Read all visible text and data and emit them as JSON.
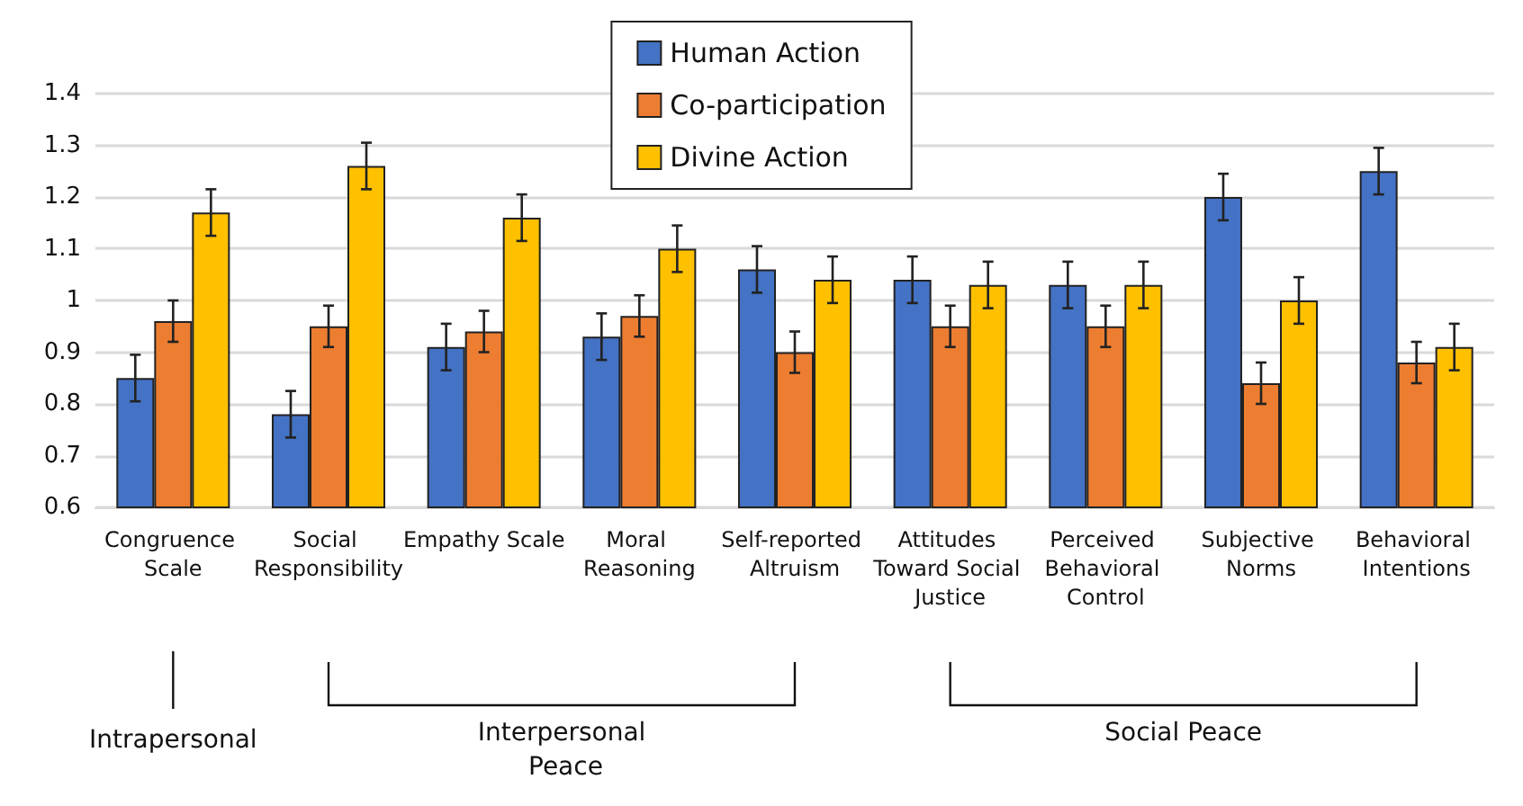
{
  "chart_data": {
    "type": "bar",
    "categories": [
      "Congruence Scale",
      "Social Responsibility",
      "Empathy Scale",
      "Moral Reasoning",
      "Self-reported Altruism",
      "Attitudes Toward Social Justice",
      "Perceived Behavioral Control",
      "Subjective Norms",
      "Behavioral Intentions"
    ],
    "series": [
      {
        "name": "Human Action",
        "color": "#4472c4",
        "values": [
          0.85,
          0.78,
          0.91,
          0.93,
          1.06,
          1.04,
          1.03,
          1.2,
          1.25
        ],
        "errors": [
          0.045,
          0.045,
          0.045,
          0.045,
          0.045,
          0.045,
          0.045,
          0.045,
          0.045
        ]
      },
      {
        "name": "Co-participation",
        "color": "#ed7d31",
        "values": [
          0.96,
          0.95,
          0.94,
          0.97,
          0.9,
          0.95,
          0.95,
          0.84,
          0.88
        ],
        "errors": [
          0.04,
          0.04,
          0.04,
          0.04,
          0.04,
          0.04,
          0.04,
          0.04,
          0.04
        ]
      },
      {
        "name": "Divine Action",
        "color": "#ffc000",
        "values": [
          1.17,
          1.26,
          1.16,
          1.1,
          1.04,
          1.03,
          1.03,
          1.0,
          0.91
        ],
        "errors": [
          0.045,
          0.045,
          0.045,
          0.045,
          0.045,
          0.045,
          0.045,
          0.045,
          0.045
        ]
      }
    ],
    "ylim": [
      0.6,
      1.4
    ],
    "yticks": [
      0.6,
      0.7,
      0.8,
      0.9,
      1,
      1.1,
      1.2,
      1.3,
      1.4
    ],
    "grid": "y",
    "legend": "top",
    "annotations": [
      "Intrapersonal",
      "Interpersonal Peace",
      "Social Peace"
    ]
  }
}
